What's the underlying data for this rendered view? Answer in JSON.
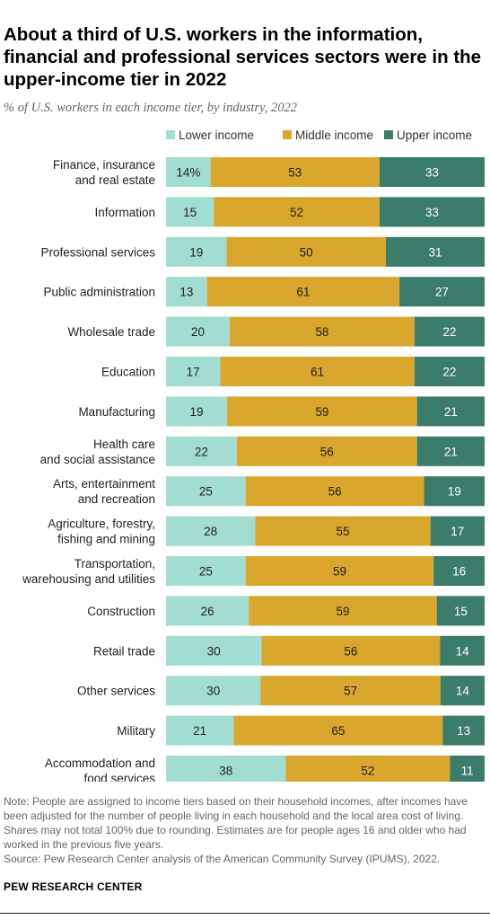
{
  "title": "About a third of U.S. workers in the information, financial and professional services sectors were in the upper-income tier in 2022",
  "subtitle": "% of U.S. workers in each income tier, by industry, 2022",
  "notes": {
    "note": "Note: People are assigned to income tiers based on their household incomes, after incomes have been adjusted for the number of people living in each household and the local area cost of living. Shares may not total 100% due to rounding. Estimates are for people ages 16 and older who had worked in the previous five years.",
    "source": "Source: Pew Research Center analysis of the American Community Survey (IPUMS), 2022."
  },
  "org": "PEW RESEARCH CENTER",
  "colors": {
    "lower": "#a3dcd1",
    "middle": "#d9a62e",
    "upper": "#3b7c6a"
  },
  "chart_data": {
    "type": "bar",
    "orientation": "horizontal",
    "stacked": true,
    "legend_position": "top",
    "categories": [
      [
        "Finance, insurance",
        "and real estate"
      ],
      [
        "Information"
      ],
      [
        "Professional services"
      ],
      [
        "Public administration"
      ],
      [
        "Wholesale trade"
      ],
      [
        "Education"
      ],
      [
        "Manufacturing"
      ],
      [
        "Health care",
        "and social assistance"
      ],
      [
        "Arts, entertainment",
        "and recreation"
      ],
      [
        "Agriculture, forestry,",
        "fishing and mining"
      ],
      [
        "Transportation,",
        "warehousing and utilities"
      ],
      [
        "Construction"
      ],
      [
        "Retail trade"
      ],
      [
        "Other services"
      ],
      [
        "Military"
      ],
      [
        "Accommodation and",
        "food services"
      ]
    ],
    "series": [
      {
        "name": "Lower income",
        "color": "#a3dcd1",
        "text_color": "#222222",
        "values": [
          14,
          15,
          19,
          13,
          20,
          17,
          19,
          22,
          25,
          28,
          25,
          26,
          30,
          30,
          21,
          38
        ]
      },
      {
        "name": "Middle income",
        "color": "#d9a62e",
        "text_color": "#222222",
        "values": [
          53,
          52,
          50,
          61,
          58,
          61,
          59,
          56,
          56,
          55,
          59,
          59,
          56,
          57,
          65,
          52
        ]
      },
      {
        "name": "Upper income",
        "color": "#3b7c6a",
        "text_color": "#ffffff",
        "values": [
          33,
          33,
          31,
          27,
          22,
          22,
          21,
          21,
          19,
          17,
          16,
          15,
          14,
          14,
          13,
          11
        ]
      }
    ],
    "first_value_suffix": "%"
  }
}
